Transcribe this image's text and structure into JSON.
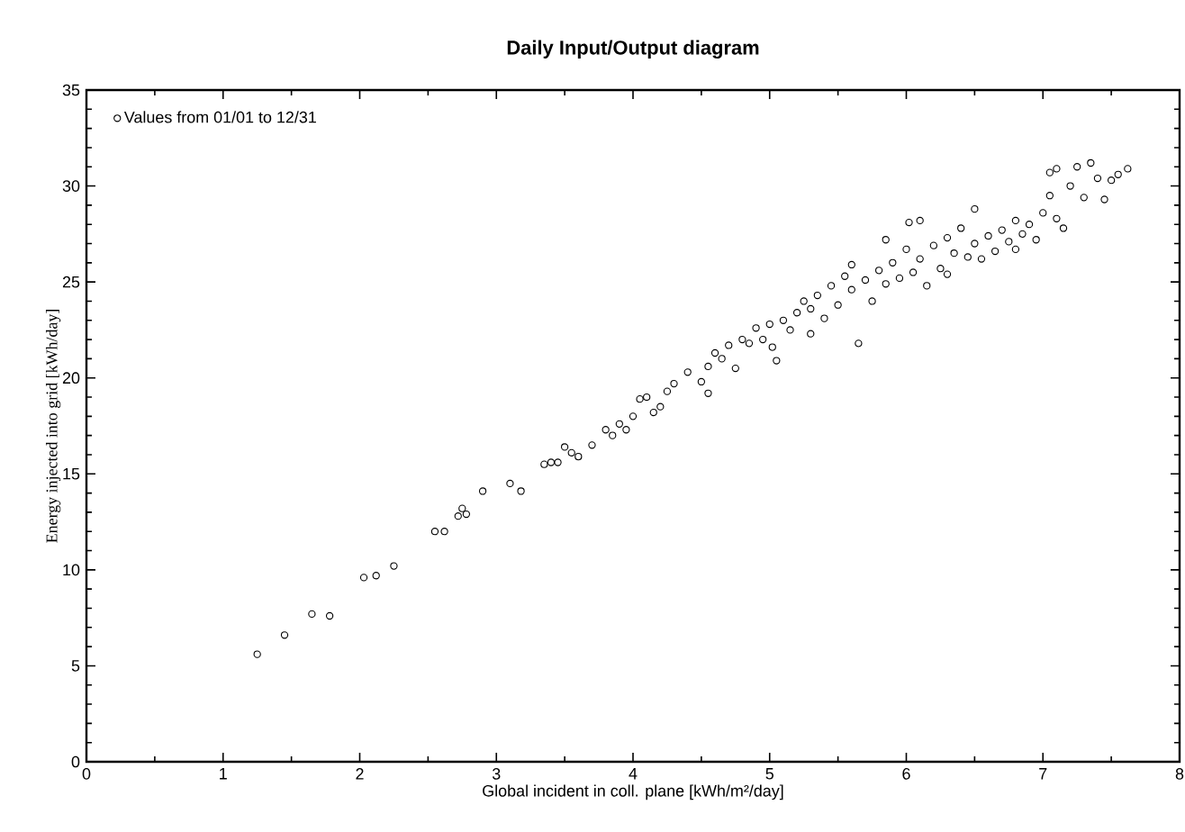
{
  "chart_data": {
    "type": "scatter",
    "title": "Daily Input/Output diagram",
    "xlabel": "Global incident in coll. plane [kWh/m²/day]",
    "ylabel": "Energy injected into grid [kWh/day]",
    "xlim": [
      0,
      8
    ],
    "ylim": [
      0,
      35
    ],
    "xticks": [
      0,
      1,
      2,
      3,
      4,
      5,
      6,
      7,
      8
    ],
    "yticks": [
      0,
      5,
      10,
      15,
      20,
      25,
      30,
      35
    ],
    "legend": "top left",
    "marker": "circle",
    "series": [
      {
        "name": "Values from 01/01 to 12/31",
        "color": "#000000",
        "x": [
          1.25,
          1.45,
          1.65,
          1.78,
          2.03,
          2.12,
          2.25,
          2.55,
          2.62,
          2.72,
          2.75,
          2.78,
          2.9,
          3.1,
          3.18,
          3.35,
          3.4,
          3.45,
          3.5,
          3.55,
          3.6,
          3.7,
          3.8,
          3.85,
          3.9,
          3.95,
          4.0,
          4.05,
          4.1,
          4.15,
          4.2,
          4.25,
          4.3,
          4.4,
          4.5,
          4.55,
          4.55,
          4.6,
          4.65,
          4.7,
          4.75,
          4.8,
          4.85,
          4.9,
          4.95,
          5.0,
          5.02,
          5.05,
          5.1,
          5.15,
          5.2,
          5.25,
          5.3,
          5.3,
          5.35,
          5.4,
          5.45,
          5.5,
          5.55,
          5.6,
          5.6,
          5.65,
          5.7,
          5.75,
          5.8,
          5.85,
          5.85,
          5.9,
          5.95,
          6.0,
          6.02,
          6.05,
          6.1,
          6.1,
          6.15,
          6.2,
          6.25,
          6.3,
          6.3,
          6.35,
          6.4,
          6.45,
          6.5,
          6.5,
          6.55,
          6.6,
          6.65,
          6.7,
          6.75,
          6.8,
          6.8,
          6.85,
          6.9,
          6.95,
          7.0,
          7.05,
          7.05,
          7.1,
          7.1,
          7.15,
          7.2,
          7.25,
          7.3,
          7.35,
          7.4,
          7.45,
          7.5,
          7.55,
          7.62
        ],
        "values": [
          5.6,
          6.6,
          7.7,
          7.6,
          9.6,
          9.7,
          10.2,
          12.0,
          12.0,
          12.8,
          13.2,
          12.9,
          14.1,
          14.5,
          14.1,
          15.5,
          15.6,
          15.6,
          16.4,
          16.1,
          15.9,
          16.5,
          17.3,
          17.0,
          17.6,
          17.3,
          18.0,
          18.9,
          19.0,
          18.2,
          18.5,
          19.3,
          19.7,
          20.3,
          19.8,
          20.6,
          19.2,
          21.3,
          21.0,
          21.7,
          20.5,
          22.0,
          21.8,
          22.6,
          22.0,
          22.8,
          21.6,
          20.9,
          23.0,
          22.5,
          23.4,
          24.0,
          23.6,
          22.3,
          24.3,
          23.1,
          24.8,
          23.8,
          25.3,
          24.6,
          25.9,
          21.8,
          25.1,
          24.0,
          25.6,
          24.9,
          27.2,
          26.0,
          25.2,
          26.7,
          28.1,
          25.5,
          26.2,
          28.2,
          24.8,
          26.9,
          25.7,
          27.3,
          25.4,
          26.5,
          27.8,
          26.3,
          27.0,
          28.8,
          26.2,
          27.4,
          26.6,
          27.7,
          27.1,
          28.2,
          26.7,
          27.5,
          28.0,
          27.2,
          28.6,
          30.7,
          29.5,
          30.9,
          28.3,
          27.8,
          30.0,
          31.0,
          29.4,
          31.2,
          30.4,
          29.3,
          30.3,
          30.6,
          30.9
        ]
      }
    ]
  }
}
